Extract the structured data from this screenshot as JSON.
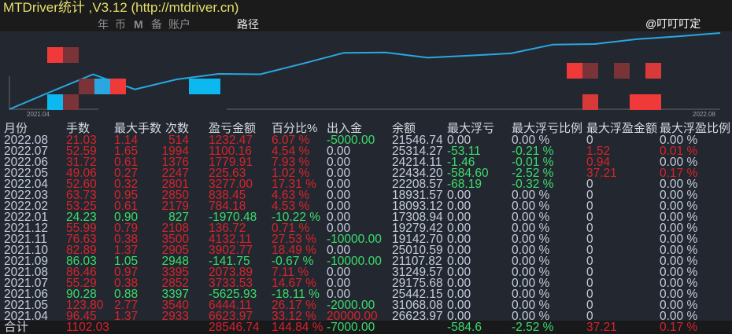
{
  "window": {
    "title": "MTDriver统计 ,V3.12 (http://mtdriver.cn)"
  },
  "toolbar": {
    "items": [
      "年",
      "币",
      "M",
      "备",
      "账户"
    ],
    "path_label": "路径"
  },
  "chart": {
    "x_start": "2021.04",
    "x_end": "2022.08",
    "line_color": "#2aa7e0"
  },
  "table": {
    "headers": [
      "月份",
      "手数",
      "最大手数",
      "次数",
      "盈亏金额",
      "百分比%",
      "出入金",
      "余额",
      "最大浮亏",
      "最大浮亏比例",
      "最大浮盈金额",
      "最大浮盈比例"
    ],
    "rows": [
      [
        "2022.08",
        "21.03",
        "1.14",
        "514",
        "1232.47",
        "6.07 %",
        "-5000.00",
        "21546.74",
        "0.00",
        "0.00 %",
        "0",
        "0.00 %"
      ],
      [
        "2022.07",
        "52.59",
        "1.65",
        "1994",
        "1100.16",
        "4.54 %",
        "0.00",
        "25314.27",
        "-53.11",
        "-0.21 %",
        "1.52",
        "0.01 %"
      ],
      [
        "2022.06",
        "31.72",
        "0.61",
        "1376",
        "1779.91",
        "7.93 %",
        "0.00",
        "24214.11",
        "-1.46",
        "-0.01 %",
        "0.94",
        "0.00 %"
      ],
      [
        "2022.05",
        "49.06",
        "0.27",
        "2247",
        "225.63",
        "1.02 %",
        "0.00",
        "22434.20",
        "-584.60",
        "-2.52 %",
        "37.21",
        "0.17 %"
      ],
      [
        "2022.04",
        "52.60",
        "0.32",
        "2801",
        "3277.00",
        "17.31 %",
        "0.00",
        "22208.57",
        "-68.19",
        "-0.32 %",
        "0",
        "0.00 %"
      ],
      [
        "2022.03",
        "63.73",
        "0.95",
        "2850",
        "838.45",
        "4.63 %",
        "0.00",
        "18931.57",
        "0.00",
        "0.00 %",
        "0",
        "0.00 %"
      ],
      [
        "2022.02",
        "53.25",
        "0.61",
        "2179",
        "784.18",
        "4.53 %",
        "0.00",
        "18093.12",
        "0.00",
        "0.00 %",
        "0",
        "0.00 %"
      ],
      [
        "2022.01",
        "24.23",
        "0.90",
        "827",
        "-1970.48",
        "-10.22 %",
        "0.00",
        "17308.94",
        "0.00",
        "0.00 %",
        "0",
        "0.00 %"
      ],
      [
        "2021.12",
        "55.99",
        "0.79",
        "2108",
        "136.72",
        "0.71 %",
        "0.00",
        "19279.42",
        "0.00",
        "0.00 %",
        "0",
        "0.00 %"
      ],
      [
        "2021.11",
        "76.63",
        "0.38",
        "3500",
        "4132.11",
        "27.53 %",
        "-10000.00",
        "19142.70",
        "0.00",
        "0.00 %",
        "0",
        "0.00 %"
      ],
      [
        "2021.10",
        "82.89",
        "1.37",
        "2905",
        "3902.77",
        "18.49 %",
        "0.00",
        "25010.59",
        "0.00",
        "0.00 %",
        "0",
        "0.00 %"
      ],
      [
        "2021.09",
        "86.03",
        "1.05",
        "2948",
        "-141.75",
        "-0.67 %",
        "-10000.00",
        "21107.82",
        "0.00",
        "0.00 %",
        "0",
        "0.00 %"
      ],
      [
        "2021.08",
        "86.46",
        "0.97",
        "3395",
        "2073.89",
        "7.11 %",
        "0.00",
        "31249.57",
        "0.00",
        "0.00 %",
        "0",
        "0.00 %"
      ],
      [
        "2021.07",
        "55.29",
        "0.38",
        "2852",
        "3733.53",
        "14.67 %",
        "0.00",
        "29175.68",
        "0.00",
        "0.00 %",
        "0",
        "0.00 %"
      ],
      [
        "2021.06",
        "90.28",
        "0.88",
        "3397",
        "-5625.93",
        "-18.11 %",
        "0.00",
        "25442.15",
        "0.00",
        "0.00 %",
        "0",
        "0.00 %"
      ],
      [
        "2021.05",
        "123.80",
        "2.77",
        "3540",
        "6444.11",
        "26.17 %",
        "-2000.00",
        "31068.08",
        "0.00",
        "0.00 %",
        "0",
        "0.00 %"
      ],
      [
        "2021.04",
        "96.45",
        "1.37",
        "2933",
        "6623.97",
        "33.12 %",
        "20000.00",
        "26623.97",
        "0.00",
        "0.00 %",
        "0",
        "0.00 %"
      ]
    ],
    "total": [
      "合计",
      "1102.03",
      "",
      "",
      "28546.74",
      "144.84 %",
      "-7000.00",
      "",
      "-584.6",
      "-2.52 %",
      "37.21",
      "0.17 %"
    ]
  },
  "colors": {
    "profit": "#d8232a",
    "loss": "#3ddc6c",
    "neutral": "#c5ccdc"
  },
  "watermark": "@叮叮叮定"
}
